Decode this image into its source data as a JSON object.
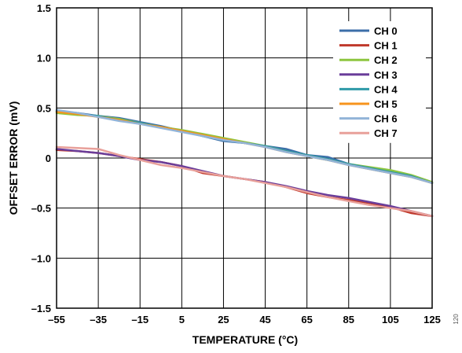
{
  "chart_data": {
    "type": "line",
    "title": "",
    "xlabel": "TEMPERATURE (°C)",
    "ylabel": "OFFSET ERROR (mV)",
    "xlim": [
      -55,
      125
    ],
    "ylim": [
      -1.5,
      1.5
    ],
    "x_ticks": [
      -55,
      -35,
      -15,
      5,
      25,
      45,
      65,
      85,
      105,
      125
    ],
    "x_tick_labels": [
      "–55",
      "–35",
      "–15",
      "5",
      "25",
      "45",
      "65",
      "85",
      "105",
      "125"
    ],
    "y_ticks": [
      1.5,
      1.0,
      0.5,
      0,
      -0.5,
      -1.0,
      -1.5
    ],
    "y_tick_labels": [
      "1.5",
      "1.0",
      "0.5",
      "0",
      "–0.5",
      "–1.0",
      "–1.5"
    ],
    "grid": true,
    "legend_position": "top-right",
    "side_text": "120",
    "x": [
      -55,
      -45,
      -35,
      -25,
      -15,
      -5,
      5,
      15,
      25,
      35,
      45,
      55,
      65,
      75,
      85,
      95,
      105,
      115,
      125
    ],
    "series": [
      {
        "name": "CH 0",
        "color": "#3c6ea8",
        "values": [
          0.47,
          0.45,
          0.42,
          0.4,
          0.36,
          0.32,
          0.27,
          0.22,
          0.17,
          0.15,
          0.12,
          0.09,
          0.03,
          0.01,
          -0.06,
          -0.1,
          -0.13,
          -0.18,
          -0.25
        ]
      },
      {
        "name": "CH 1",
        "color": "#c0392b",
        "values": [
          0.08,
          0.07,
          0.05,
          0.02,
          -0.01,
          -0.04,
          -0.08,
          -0.15,
          -0.18,
          -0.21,
          -0.24,
          -0.29,
          -0.35,
          -0.39,
          -0.42,
          -0.45,
          -0.49,
          -0.55,
          -0.58
        ]
      },
      {
        "name": "CH 2",
        "color": "#8dc63f",
        "values": [
          0.45,
          0.43,
          0.42,
          0.39,
          0.35,
          0.31,
          0.28,
          0.24,
          0.2,
          0.16,
          0.12,
          0.07,
          0.02,
          -0.02,
          -0.06,
          -0.09,
          -0.12,
          -0.17,
          -0.24
        ]
      },
      {
        "name": "CH 3",
        "color": "#6a3d9a",
        "values": [
          0.09,
          0.07,
          0.05,
          0.02,
          -0.02,
          -0.04,
          -0.08,
          -0.13,
          -0.18,
          -0.21,
          -0.24,
          -0.28,
          -0.33,
          -0.37,
          -0.4,
          -0.44,
          -0.48,
          -0.53,
          -0.58
        ]
      },
      {
        "name": "CH 4",
        "color": "#2e9aa8",
        "values": [
          0.47,
          0.44,
          0.42,
          0.38,
          0.35,
          0.31,
          0.27,
          0.22,
          0.18,
          0.15,
          0.12,
          0.07,
          0.03,
          -0.01,
          -0.06,
          -0.1,
          -0.14,
          -0.18,
          -0.25
        ]
      },
      {
        "name": "CH 5",
        "color": "#f7941d",
        "values": [
          0.46,
          0.44,
          0.41,
          0.38,
          0.34,
          0.31,
          0.27,
          0.23,
          0.19,
          0.15,
          0.11,
          0.06,
          0.02,
          -0.02,
          -0.07,
          -0.11,
          -0.15,
          -0.19,
          -0.25
        ]
      },
      {
        "name": "CH 6",
        "color": "#92b4d8",
        "values": [
          0.48,
          0.45,
          0.41,
          0.37,
          0.34,
          0.3,
          0.26,
          0.22,
          0.18,
          0.15,
          0.11,
          0.06,
          0.02,
          -0.02,
          -0.07,
          -0.11,
          -0.15,
          -0.19,
          -0.25
        ]
      },
      {
        "name": "CH 7",
        "color": "#e8a09a",
        "values": [
          0.11,
          0.1,
          0.09,
          0.03,
          -0.02,
          -0.07,
          -0.1,
          -0.14,
          -0.18,
          -0.21,
          -0.25,
          -0.29,
          -0.34,
          -0.39,
          -0.43,
          -0.47,
          -0.5,
          -0.53,
          -0.58
        ]
      }
    ]
  }
}
